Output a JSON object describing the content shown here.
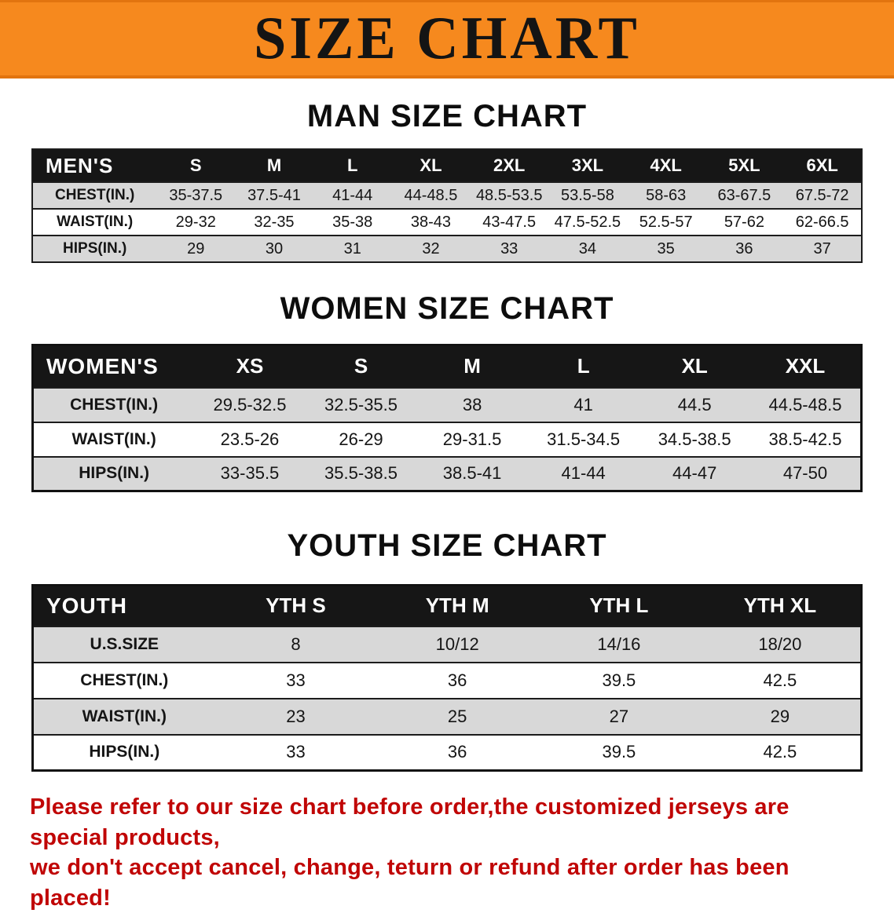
{
  "banner": {
    "title": "SIZE CHART"
  },
  "sections": [
    {
      "id": "men",
      "title": "MAN SIZE CHART",
      "table": {
        "header": [
          "MEN'S",
          "S",
          "M",
          "L",
          "XL",
          "2XL",
          "3XL",
          "4XL",
          "5XL",
          "6XL"
        ],
        "rows": [
          {
            "label": "CHEST(IN.)",
            "values": [
              "35-37.5",
              "37.5-41",
              "41-44",
              "44-48.5",
              "48.5-53.5",
              "53.5-58",
              "58-63",
              "63-67.5",
              "67.5-72"
            ]
          },
          {
            "label": "WAIST(IN.)",
            "values": [
              "29-32",
              "32-35",
              "35-38",
              "38-43",
              "43-47.5",
              "47.5-52.5",
              "52.5-57",
              "57-62",
              "62-66.5"
            ]
          },
          {
            "label": "HIPS(IN.)",
            "values": [
              "29",
              "30",
              "31",
              "32",
              "33",
              "34",
              "35",
              "36",
              "37"
            ]
          }
        ]
      }
    },
    {
      "id": "women",
      "title": "WOMEN SIZE CHART",
      "table": {
        "header": [
          "WOMEN'S",
          "XS",
          "S",
          "M",
          "L",
          "XL",
          "XXL"
        ],
        "rows": [
          {
            "label": "CHEST(IN.)",
            "values": [
              "29.5-32.5",
              "32.5-35.5",
              "38",
              "41",
              "44.5",
              "44.5-48.5"
            ]
          },
          {
            "label": "WAIST(IN.)",
            "values": [
              "23.5-26",
              "26-29",
              "29-31.5",
              "31.5-34.5",
              "34.5-38.5",
              "38.5-42.5"
            ]
          },
          {
            "label": "HIPS(IN.)",
            "values": [
              "33-35.5",
              "35.5-38.5",
              "38.5-41",
              "41-44",
              "44-47",
              "47-50"
            ]
          }
        ]
      }
    },
    {
      "id": "youth",
      "title": "YOUTH SIZE CHART",
      "table": {
        "header": [
          "YOUTH",
          "YTH S",
          "YTH M",
          "YTH L",
          "YTH XL"
        ],
        "rows": [
          {
            "label": "U.S.SIZE",
            "values": [
              "8",
              "10/12",
              "14/16",
              "18/20"
            ]
          },
          {
            "label": "CHEST(IN.)",
            "values": [
              "33",
              "36",
              "39.5",
              "42.5"
            ]
          },
          {
            "label": "WAIST(IN.)",
            "values": [
              "23",
              "25",
              "27",
              "29"
            ]
          },
          {
            "label": "HIPS(IN.)",
            "values": [
              "33",
              "36",
              "39.5",
              "42.5"
            ]
          }
        ]
      }
    }
  ],
  "footer": {
    "lines": [
      "Please refer to our size chart before order,the customized jerseys are special products,",
      "we don't accept cancel, change, teturn or refund after order has been placed!"
    ]
  },
  "colors": {
    "banner_orange": "#f6891e",
    "table_header_black": "#161616",
    "row_gray": "#d8d8d8",
    "footer_red": "#c00505"
  }
}
